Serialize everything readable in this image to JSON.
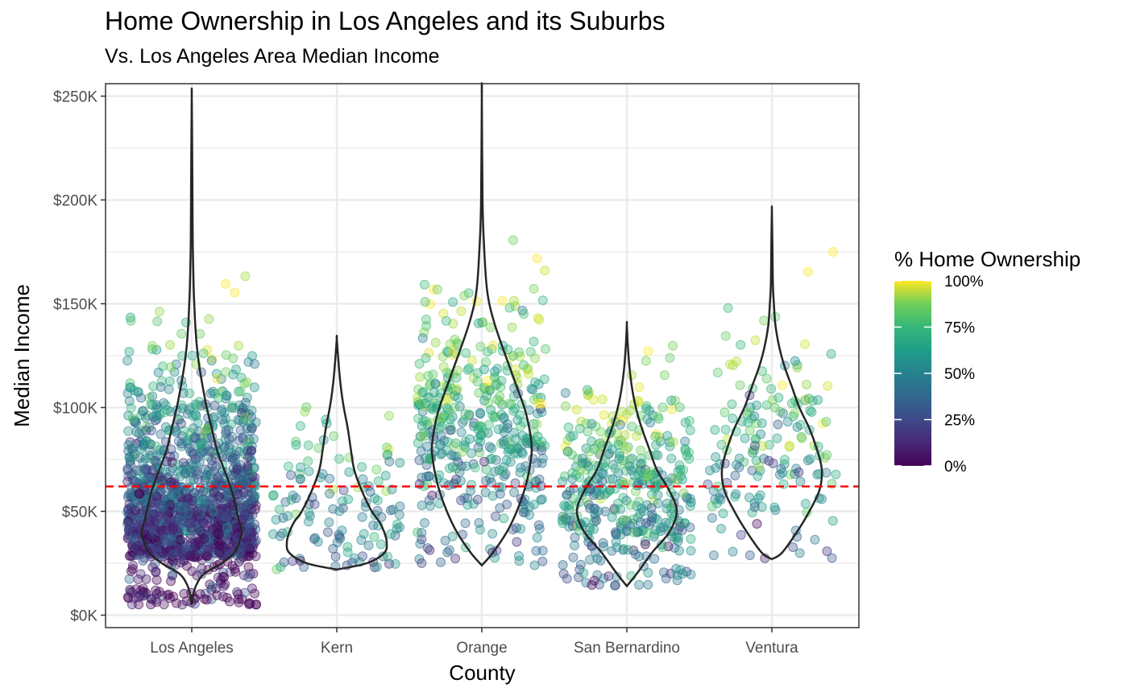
{
  "chart_data": {
    "type": "scatter",
    "title": "Home Ownership in Los Angeles and its Suburbs",
    "subtitle": "Vs. Los Angeles Area Median Income",
    "xlabel": "County",
    "ylabel": "Median Income",
    "categories": [
      "Los Angeles",
      "Kern",
      "Orange",
      "San Bernardino",
      "Ventura"
    ],
    "highlight_category": "Los Angeles",
    "highlight_color": "#ff0000",
    "y_ticks": [
      {
        "value": 0,
        "label": "$0K"
      },
      {
        "value": 50000,
        "label": "$50K"
      },
      {
        "value": 100000,
        "label": "$100K"
      },
      {
        "value": 150000,
        "label": "$150K"
      },
      {
        "value": 200000,
        "label": "$200K"
      },
      {
        "value": 250000,
        "label": "$250K"
      }
    ],
    "ylim": [
      -6000,
      256000
    ],
    "reference_line": {
      "value": 62000,
      "color": "#ff0000",
      "style": "dashed"
    },
    "legend": {
      "title": "% Home Ownership",
      "labels": [
        "0%",
        "25%",
        "50%",
        "75%",
        "100%"
      ],
      "palette": "viridis",
      "placement": "right"
    },
    "grid": true,
    "point_opacity": 0.35,
    "violins": [
      {
        "county": "Los Angeles",
        "min": 5000,
        "max": 250000,
        "profile": [
          [
            5000,
            0.0
          ],
          [
            10000,
            0.03
          ],
          [
            15000,
            0.1
          ],
          [
            20000,
            0.25
          ],
          [
            25000,
            0.6
          ],
          [
            30000,
            0.85
          ],
          [
            35000,
            0.95
          ],
          [
            40000,
            1.0
          ],
          [
            45000,
            0.95
          ],
          [
            50000,
            0.9
          ],
          [
            60000,
            0.8
          ],
          [
            70000,
            0.65
          ],
          [
            80000,
            0.5
          ],
          [
            90000,
            0.4
          ],
          [
            100000,
            0.3
          ],
          [
            110000,
            0.22
          ],
          [
            120000,
            0.15
          ],
          [
            130000,
            0.1
          ],
          [
            140000,
            0.07
          ],
          [
            150000,
            0.05
          ],
          [
            160000,
            0.035
          ],
          [
            180000,
            0.02
          ],
          [
            200000,
            0.015
          ],
          [
            220000,
            0.01
          ],
          [
            250000,
            0.0
          ]
        ]
      },
      {
        "county": "Kern",
        "min": 22000,
        "max": 133000,
        "profile": [
          [
            22000,
            0.0
          ],
          [
            25000,
            0.6
          ],
          [
            30000,
            0.95
          ],
          [
            35000,
            1.0
          ],
          [
            40000,
            0.95
          ],
          [
            45000,
            0.85
          ],
          [
            50000,
            0.7
          ],
          [
            60000,
            0.5
          ],
          [
            70000,
            0.35
          ],
          [
            80000,
            0.28
          ],
          [
            90000,
            0.22
          ],
          [
            100000,
            0.14
          ],
          [
            110000,
            0.08
          ],
          [
            120000,
            0.04
          ],
          [
            133000,
            0.0
          ]
        ]
      },
      {
        "county": "Orange",
        "min": 24000,
        "max": 250000,
        "profile": [
          [
            24000,
            0.0
          ],
          [
            30000,
            0.22
          ],
          [
            40000,
            0.5
          ],
          [
            50000,
            0.7
          ],
          [
            60000,
            0.85
          ],
          [
            70000,
            0.95
          ],
          [
            80000,
            1.0
          ],
          [
            90000,
            0.95
          ],
          [
            100000,
            0.85
          ],
          [
            110000,
            0.7
          ],
          [
            120000,
            0.55
          ],
          [
            130000,
            0.4
          ],
          [
            140000,
            0.26
          ],
          [
            150000,
            0.15
          ],
          [
            160000,
            0.09
          ],
          [
            180000,
            0.04
          ],
          [
            200000,
            0.015
          ],
          [
            250000,
            0.0
          ]
        ]
      },
      {
        "county": "San Bernardino",
        "min": 14000,
        "max": 140000,
        "profile": [
          [
            14000,
            0.0
          ],
          [
            20000,
            0.2
          ],
          [
            30000,
            0.5
          ],
          [
            40000,
            0.85
          ],
          [
            50000,
            1.0
          ],
          [
            60000,
            0.85
          ],
          [
            70000,
            0.6
          ],
          [
            80000,
            0.45
          ],
          [
            90000,
            0.3
          ],
          [
            100000,
            0.18
          ],
          [
            110000,
            0.1
          ],
          [
            120000,
            0.05
          ],
          [
            130000,
            0.02
          ],
          [
            140000,
            0.0
          ]
        ]
      },
      {
        "county": "Ventura",
        "min": 27000,
        "max": 195000,
        "profile": [
          [
            27000,
            0.0
          ],
          [
            30000,
            0.2
          ],
          [
            40000,
            0.5
          ],
          [
            50000,
            0.75
          ],
          [
            60000,
            0.95
          ],
          [
            70000,
            1.0
          ],
          [
            80000,
            0.9
          ],
          [
            90000,
            0.75
          ],
          [
            100000,
            0.55
          ],
          [
            110000,
            0.4
          ],
          [
            120000,
            0.25
          ],
          [
            130000,
            0.14
          ],
          [
            140000,
            0.07
          ],
          [
            150000,
            0.04
          ],
          [
            160000,
            0.02
          ],
          [
            180000,
            0.01
          ],
          [
            195000,
            0.0
          ]
        ]
      }
    ],
    "point_groups": [
      {
        "county": "Los Angeles",
        "count": 1500,
        "ownership_by_income": "higher income, higher ownership"
      },
      {
        "county": "Kern",
        "count": 130
      },
      {
        "county": "Orange",
        "count": 450
      },
      {
        "county": "San Bernardino",
        "count": 420
      },
      {
        "county": "Ventura",
        "count": 170
      }
    ]
  }
}
